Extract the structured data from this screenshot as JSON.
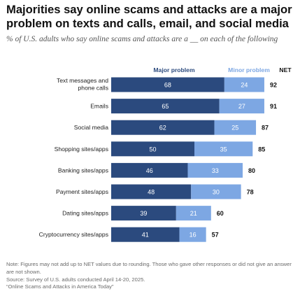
{
  "title": "Majorities say online scams and attacks are a major problem on texts and calls, email, and social media",
  "subtitle": "% of U.S. adults who say online scams and attacks are a __ on each of the following",
  "notes": {
    "line1": "Note: Figures may not add up to NET values due to rounding. Those who gave other responses or did not give an answer are not shown.",
    "line2": "Source: Survey of U.S. adults conducted April 14-20, 2025.",
    "line3": "“Online Scams and Attacks in America Today”"
  },
  "colors": {
    "major": "#2b4a7e",
    "minor": "#7da7e3"
  },
  "chart_data": {
    "type": "bar",
    "orientation": "horizontal",
    "stacked": true,
    "categories": [
      "Text messages and phone calls",
      "Emails",
      "Social media",
      "Shopping sites/apps",
      "Banking sites/apps",
      "Payment sites/apps",
      "Dating sites/apps",
      "Cryptocurrency sites/apps"
    ],
    "category_label_lines": [
      [
        "Text messages and",
        "phone calls"
      ],
      [
        "Emails"
      ],
      [
        "Social media"
      ],
      [
        "Shopping sites/apps"
      ],
      [
        "Banking sites/apps"
      ],
      [
        "Payment sites/apps"
      ],
      [
        "Dating sites/apps"
      ],
      [
        "Cryptocurrency sites/apps"
      ]
    ],
    "series": [
      {
        "name": "Major problem",
        "values": [
          68,
          65,
          62,
          50,
          46,
          48,
          39,
          41
        ]
      },
      {
        "name": "Minor problem",
        "values": [
          24,
          27,
          25,
          35,
          33,
          30,
          21,
          16
        ]
      }
    ],
    "net_label": "NET",
    "net": [
      92,
      91,
      87,
      85,
      80,
      78,
      60,
      57
    ],
    "legend_position": "top",
    "grid": false
  }
}
